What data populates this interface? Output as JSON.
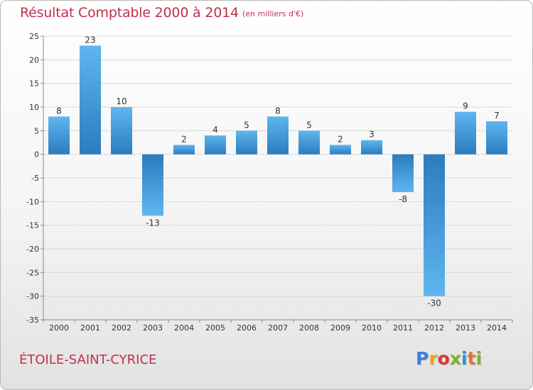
{
  "title": "Résultat Comptable 2000 à 2014",
  "subtitle": "(en milliers d'€)",
  "commune": "ÉTOILE-SAINT-CYRICE",
  "logo": {
    "letters": [
      "P",
      "r",
      "o",
      "x",
      "i",
      "t",
      "i"
    ]
  },
  "colors": {
    "title": "#c0304d",
    "bar_light": "#5cb4ee",
    "bar_dark": "#2f80c2",
    "grid": "#d8d8d8",
    "axis": "#888888"
  },
  "chart_data": {
    "type": "bar",
    "categories": [
      "2000",
      "2001",
      "2002",
      "2003",
      "2004",
      "2005",
      "2006",
      "2007",
      "2008",
      "2009",
      "2010",
      "2011",
      "2012",
      "2013",
      "2014"
    ],
    "values": [
      8,
      23,
      10,
      -13,
      2,
      4,
      5,
      8,
      5,
      2,
      3,
      -8,
      -30,
      9,
      7
    ],
    "value_labels": [
      "8",
      "23",
      "10",
      "-13",
      "2",
      "4",
      "5",
      "8",
      "5",
      "2",
      "3",
      "-8",
      "-30",
      "9",
      "7"
    ],
    "yticks": [
      "25",
      "20",
      "15",
      "10",
      "5",
      "0",
      "-5",
      "-10",
      "-15",
      "-20",
      "-25",
      "-30",
      "-35"
    ],
    "ylim": [
      -35,
      25
    ],
    "grid": true
  }
}
